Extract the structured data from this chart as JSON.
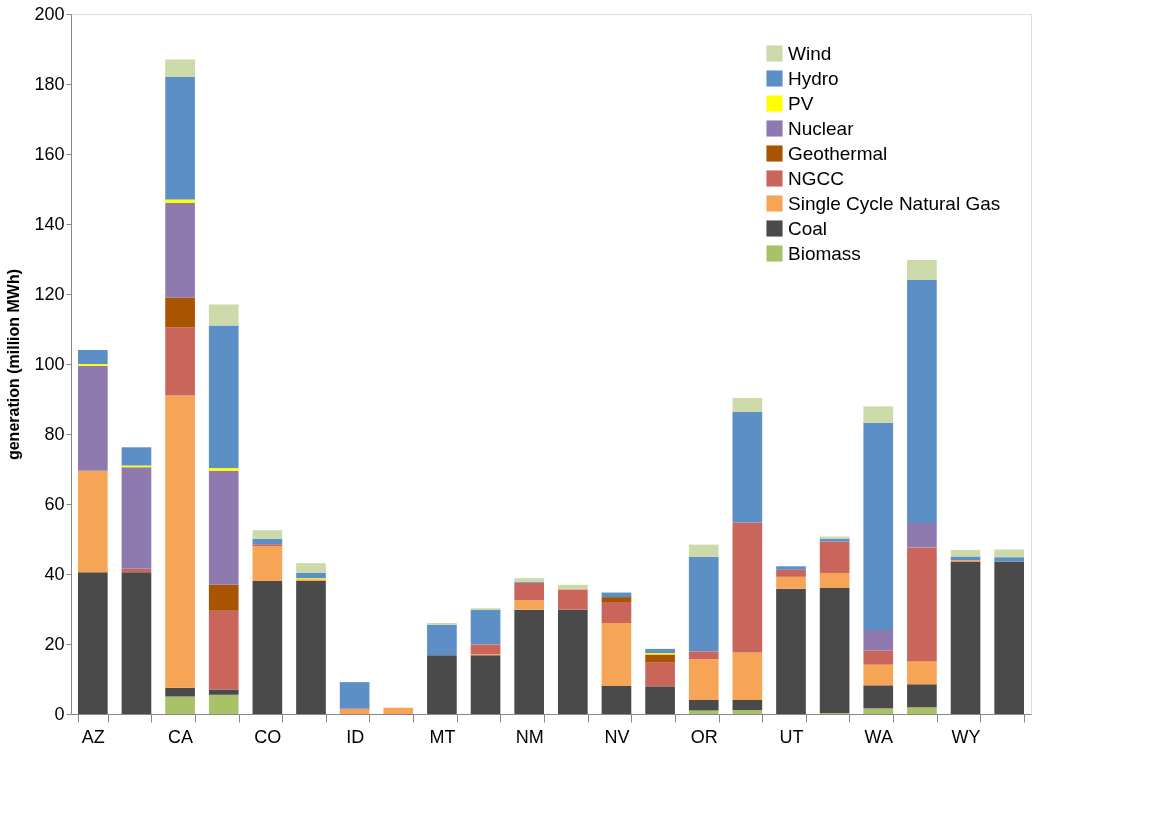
{
  "chart_data": {
    "type": "bar",
    "stacked": true,
    "ylabel": "generation (million MWh)",
    "categories": [
      "AZ",
      null,
      "CA",
      null,
      "CO",
      null,
      "ID",
      null,
      "MT",
      null,
      "NM",
      null,
      "NV",
      null,
      "OR",
      null,
      "UT",
      null,
      "WA",
      null,
      "WY",
      null
    ],
    "ylim": [
      0,
      200
    ],
    "yticks": [
      0,
      20,
      40,
      60,
      80,
      100,
      120,
      140,
      160,
      180,
      200
    ],
    "grid": false,
    "legend": "top right",
    "series": [
      {
        "name": "Biomass",
        "color": "#a9c26a",
        "values": [
          0,
          0,
          5,
          5.5,
          0,
          0,
          0,
          0,
          0,
          0,
          0,
          0,
          null,
          0,
          1,
          1.1,
          0,
          0.3,
          1.6,
          1.9,
          0,
          0
        ]
      },
      {
        "name": "Coal",
        "color": "#4a4a4a",
        "values": [
          40.5,
          40.5,
          2.5,
          1.5,
          38,
          38,
          0,
          0,
          16.8,
          16.8,
          29.8,
          29.8,
          8,
          7.9,
          3,
          2.9,
          35.8,
          35.7,
          6.6,
          6.6,
          43.6,
          43.6
        ]
      },
      {
        "name": "Single Cycle Natural Gas",
        "color": "#f6a557",
        "values": [
          29,
          0,
          83.5,
          0,
          10,
          0.5,
          1.3,
          1.8,
          0,
          0.3,
          2.7,
          0,
          18,
          0,
          11.6,
          13.6,
          3.4,
          4.3,
          5.9,
          6.6,
          0.4,
          0
        ]
      },
      {
        "name": "NGCC",
        "color": "#c9655a",
        "values": [
          0,
          1,
          19.5,
          22.5,
          0.5,
          0,
          0.3,
          0,
          0,
          2.8,
          5,
          5.8,
          6,
          6.9,
          2.3,
          37.1,
          2,
          9,
          4,
          32.5,
          0,
          0
        ]
      },
      {
        "name": "Geothermal",
        "color": "#a85400",
        "values": [
          0,
          0,
          8.5,
          7.5,
          0,
          0,
          0,
          0,
          0,
          0,
          0,
          0,
          1.4,
          2.2,
          0,
          0,
          0,
          0,
          0,
          0,
          0,
          0
        ]
      },
      {
        "name": "Nuclear",
        "color": "#8f7ab0",
        "values": [
          30,
          29,
          27,
          32.5,
          0,
          0,
          0,
          0,
          0,
          0,
          0,
          0,
          0,
          0,
          0,
          0,
          0,
          0,
          5.9,
          7,
          0,
          0
        ]
      },
      {
        "name": "PV",
        "color": "#ffff00",
        "values": [
          0.5,
          0.5,
          1,
          0.8,
          0,
          0.3,
          0,
          0,
          0,
          0,
          0,
          0,
          0,
          0.4,
          0,
          0,
          0,
          0,
          0,
          0,
          0,
          0
        ]
      },
      {
        "name": "Hydro",
        "color": "#5b8fc5",
        "values": [
          4,
          5.2,
          35,
          40.7,
          1.5,
          1.5,
          7.5,
          0,
          8.7,
          9.8,
          0.3,
          0,
          1.3,
          1.2,
          27,
          31.6,
          1,
          0.8,
          59.2,
          69.4,
          1,
          1.2
        ]
      },
      {
        "name": "Wind",
        "color": "#ccd9a8",
        "values": [
          null,
          0,
          5,
          6,
          2.5,
          2.8,
          null,
          null,
          0.5,
          0.5,
          1,
          1.3,
          0,
          0,
          3.5,
          4,
          null,
          0.6,
          4.7,
          5.7,
          1.9,
          2.2
        ]
      }
    ]
  }
}
